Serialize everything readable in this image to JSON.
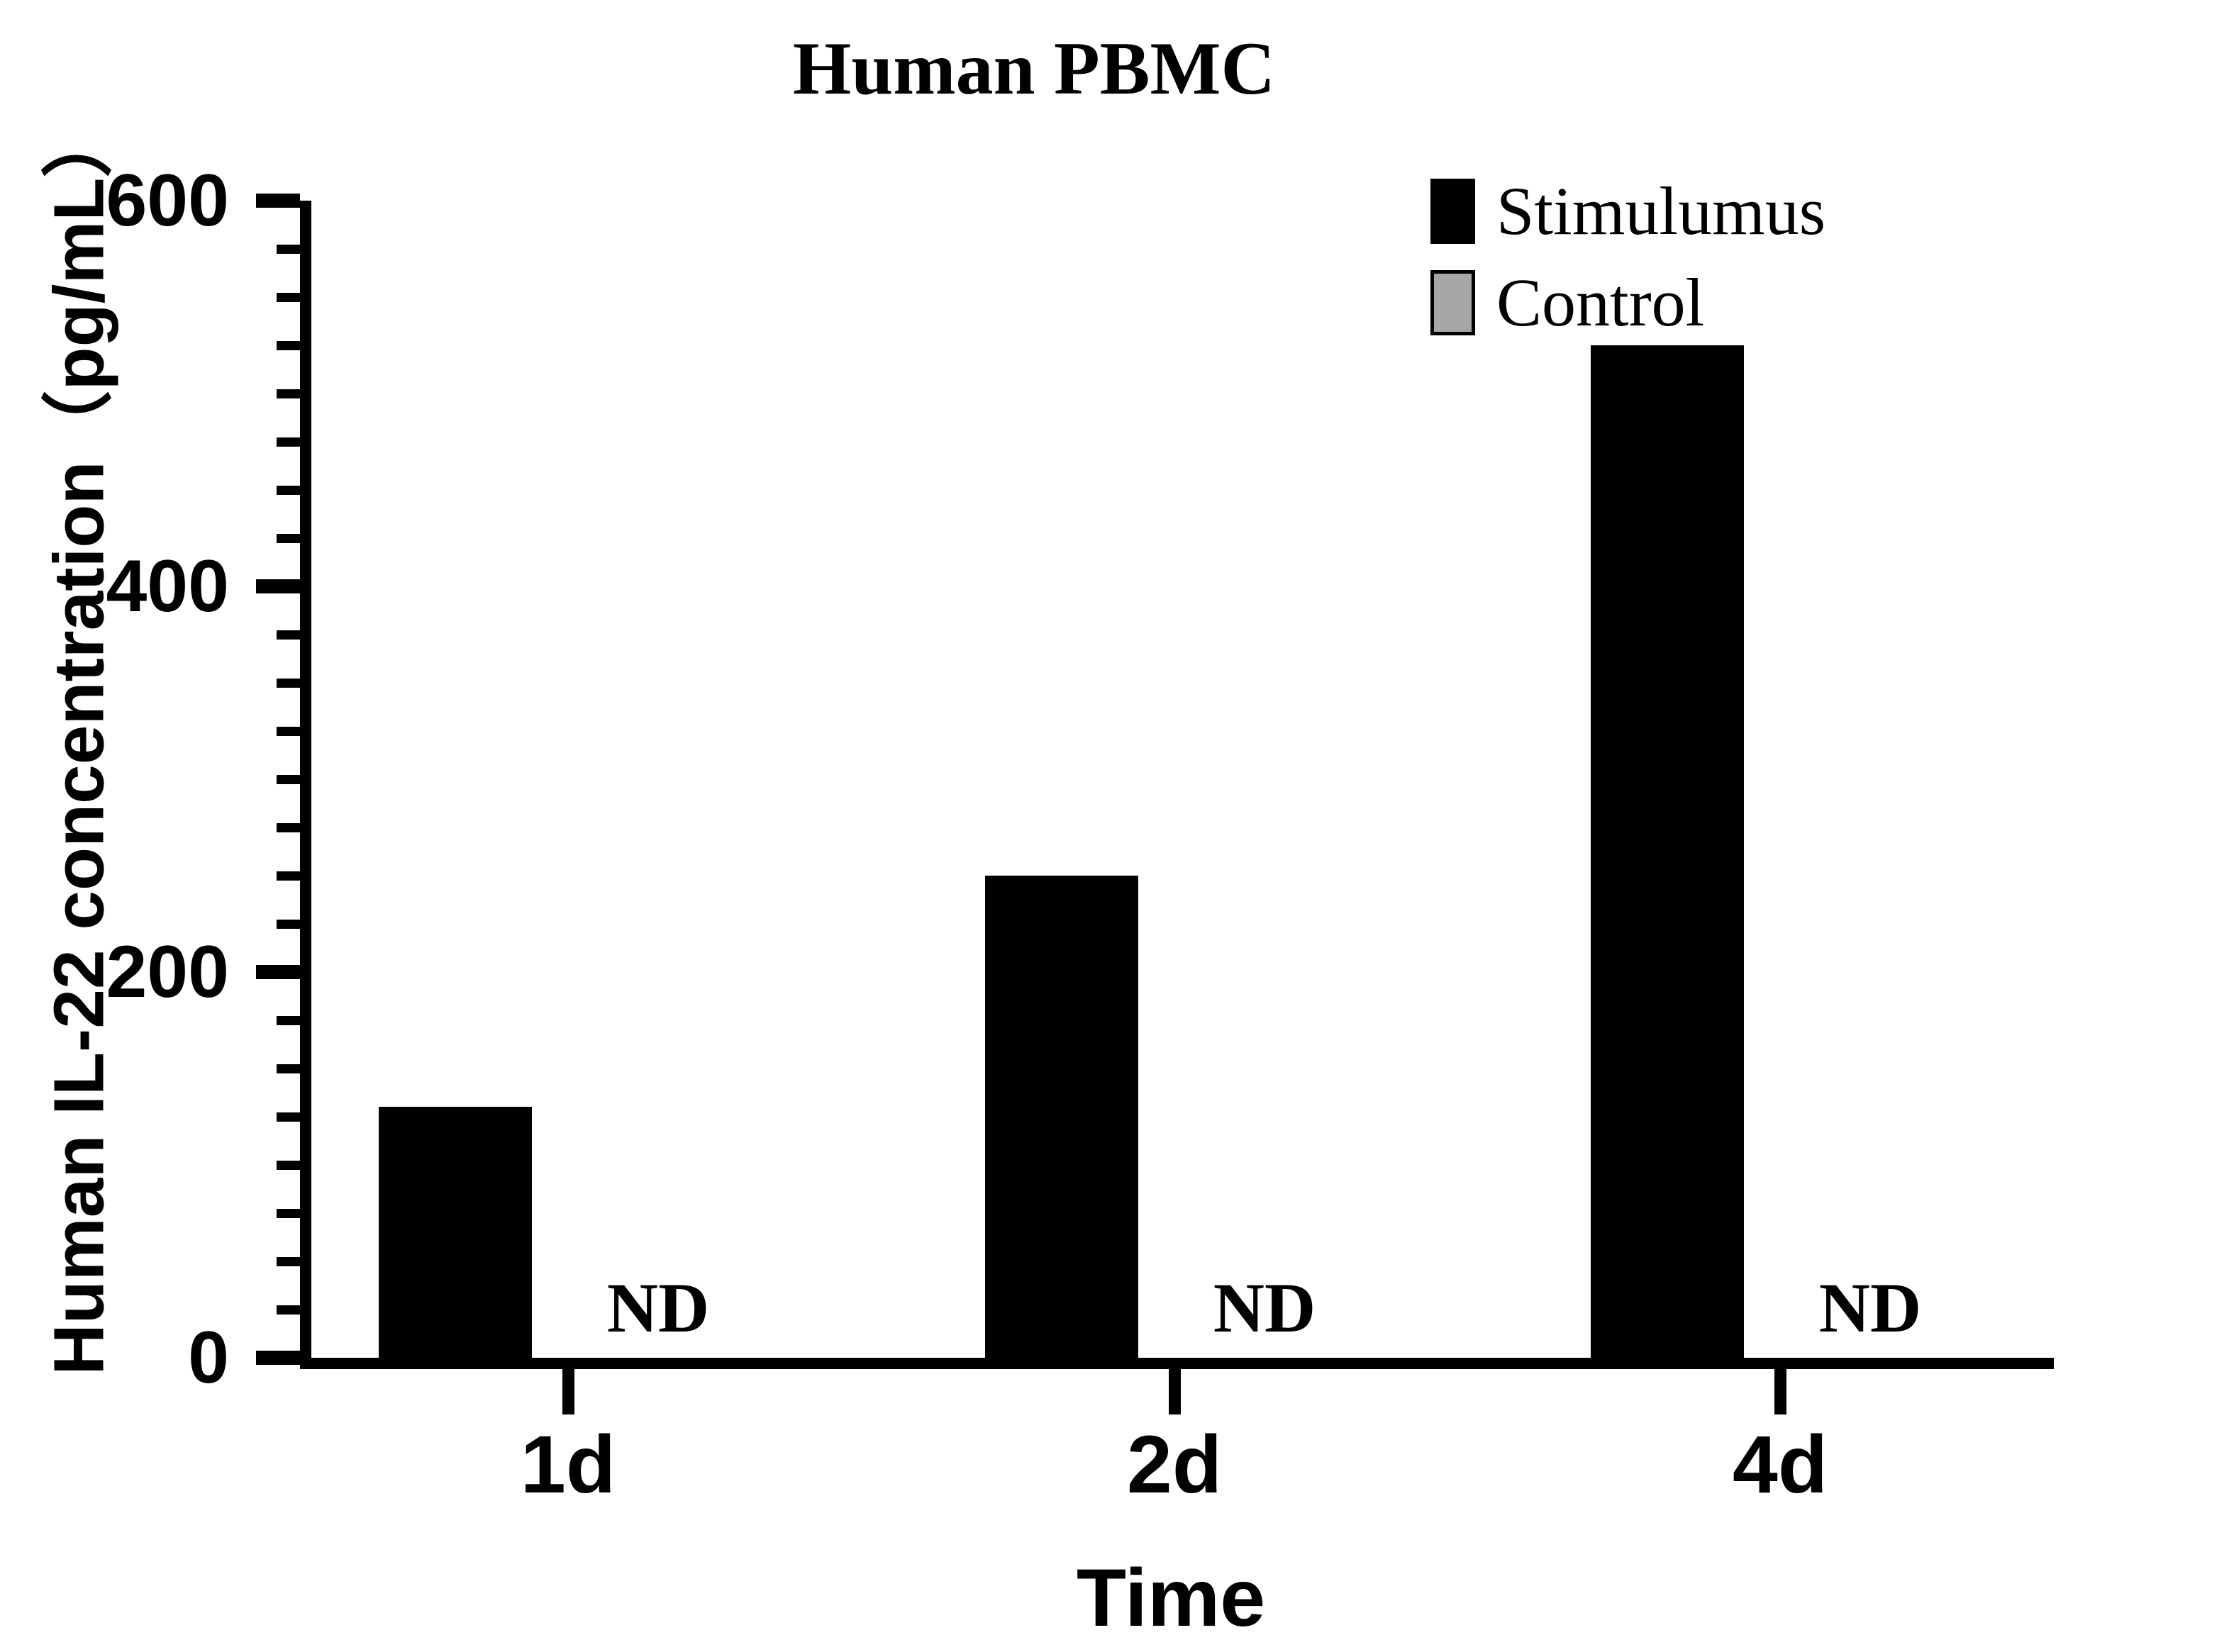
{
  "chart_data": {
    "type": "bar",
    "title": "Human PBMC",
    "xlabel": "Time",
    "ylabel": "Human IL-22 concentration（pg/mL）",
    "categories": [
      "1d",
      "2d",
      "4d"
    ],
    "series": [
      {
        "name": "Stimulumus",
        "color": "#000000",
        "values": [
          130,
          250,
          525
        ]
      },
      {
        "name": "Control",
        "color": "#a6a6a9",
        "values": [
          null,
          null,
          null
        ],
        "value_labels": [
          "ND",
          "ND",
          "ND"
        ]
      }
    ],
    "ylim": [
      0,
      600
    ],
    "yticks": [
      0,
      200,
      400,
      600
    ],
    "minor_tick_step": 25,
    "grid": false,
    "legend_position": "top-right",
    "background": "#ffffff",
    "axis_color": "#000000"
  }
}
